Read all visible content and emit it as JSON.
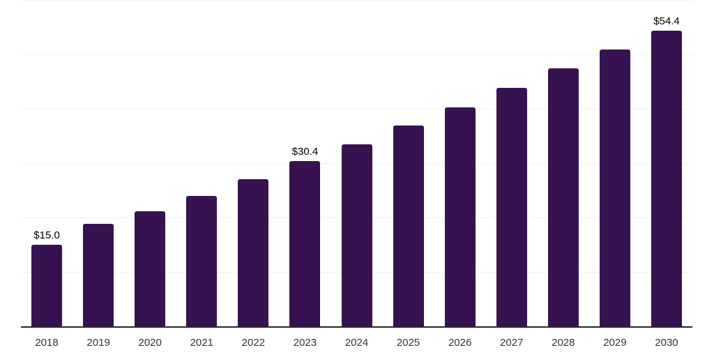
{
  "chart_data": {
    "type": "bar",
    "categories": [
      "2018",
      "2019",
      "2020",
      "2021",
      "2022",
      "2023",
      "2024",
      "2025",
      "2026",
      "2027",
      "2028",
      "2029",
      "2030"
    ],
    "values": [
      15.0,
      18.8,
      21.1,
      24.0,
      27.0,
      30.4,
      33.5,
      36.9,
      40.3,
      43.8,
      47.5,
      50.9,
      54.4
    ],
    "data_labels": [
      "$15.0",
      "",
      "",
      "",
      "",
      "$30.4",
      "",
      "",
      "",
      "",
      "",
      "",
      "$54.4"
    ],
    "title": "",
    "xlabel": "",
    "ylabel": "",
    "ylim": [
      0,
      60
    ],
    "gridline_values": [
      10,
      20,
      30,
      40,
      50,
      60
    ],
    "grid": "on",
    "legend": "none",
    "colors": {
      "bar": "#361350",
      "gridline": "#f2f1f2",
      "axis_line": "#262626",
      "tick_label": "#333333",
      "value_label": "#000000",
      "background": "#ffffff"
    }
  }
}
